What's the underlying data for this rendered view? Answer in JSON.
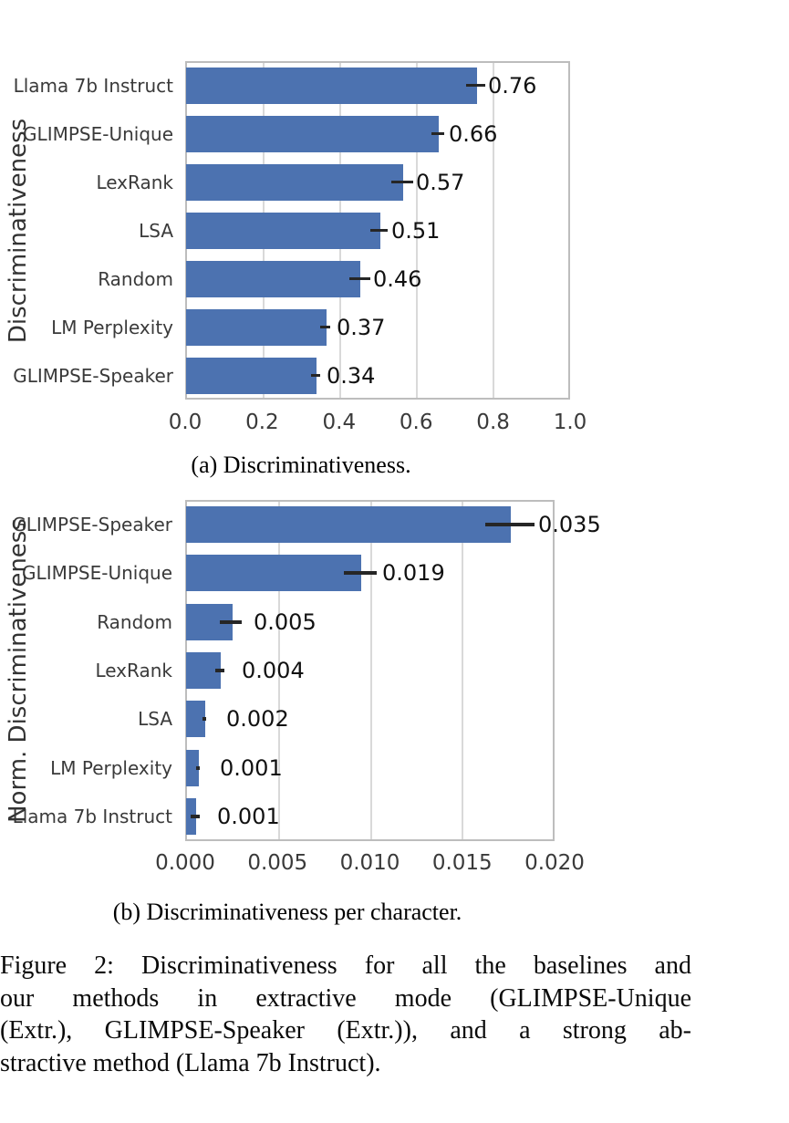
{
  "figure": {
    "caption_a": "(a) Discriminativeness.",
    "caption_b": "(b) Discriminativeness per character.",
    "figure_caption_lines": [
      "Figure 2: Discriminativeness for all the baselines and",
      "our methods in extractive mode (GLIMPSE-Unique",
      "(Extr.), GLIMPSE-Speaker (Extr.)), and a strong ab-",
      "stractive method (Llama 7b Instruct)."
    ]
  },
  "colors": {
    "bar": "#4C72B0",
    "grid": "#d9d9d9",
    "plot_border": "#bdbdbd",
    "error_bar": "#262626",
    "axis_text": "#3a3a3a",
    "value_text": "#111111"
  },
  "chart_data": [
    {
      "type": "bar",
      "orientation": "horizontal",
      "panel": "a",
      "title": "",
      "xlabel": "",
      "ylabel": "Discriminativeness",
      "categories": [
        "Llama 7b Instruct",
        "GLIMPSE-Unique",
        "LexRank",
        "LSA",
        "Random",
        "LM Perplexity",
        "GLIMPSE-Speaker"
      ],
      "values": [
        0.76,
        0.66,
        0.57,
        0.51,
        0.46,
        0.37,
        0.34
      ],
      "value_labels": [
        "0.76",
        "0.66",
        "0.57",
        "0.51",
        "0.46",
        "0.37",
        "0.34"
      ],
      "bar_fracs": [
        0.755,
        0.656,
        0.564,
        0.505,
        0.453,
        0.364,
        0.338
      ],
      "err_fracs": [
        0.025,
        0.017,
        0.028,
        0.023,
        0.027,
        0.013,
        0.012
      ],
      "xlim": [
        0.0,
        1.0
      ],
      "xticks": [
        "0.0",
        "0.2",
        "0.4",
        "0.6",
        "0.8",
        "1.0"
      ],
      "grid": true,
      "legend": false
    },
    {
      "type": "bar",
      "orientation": "horizontal",
      "panel": "b",
      "title": "",
      "xlabel": "",
      "ylabel": "Norm. Discriminativeness",
      "categories": [
        "GLIMPSE-Speaker",
        "GLIMPSE-Unique",
        "Random",
        "LexRank",
        "LSA",
        "LM Perplexity",
        "Llama 7b Instruct"
      ],
      "values": [
        0.035,
        0.019,
        0.005,
        0.004,
        0.002,
        0.001,
        0.001
      ],
      "value_labels": [
        "0.035",
        "0.019",
        "0.005",
        "0.004",
        "0.002",
        "0.001",
        "0.001"
      ],
      "bar_fracs": [
        0.88,
        0.475,
        0.125,
        0.094,
        0.052,
        0.035,
        0.027
      ],
      "err_fracs": [
        0.067,
        0.0445,
        0.03,
        0.0125,
        0.005,
        0.005,
        0.0125
      ],
      "xlim": [
        0.0,
        0.02
      ],
      "xticks": [
        "0.000",
        "0.005",
        "0.010",
        "0.015",
        "0.020"
      ],
      "grid": true,
      "legend": false
    }
  ]
}
